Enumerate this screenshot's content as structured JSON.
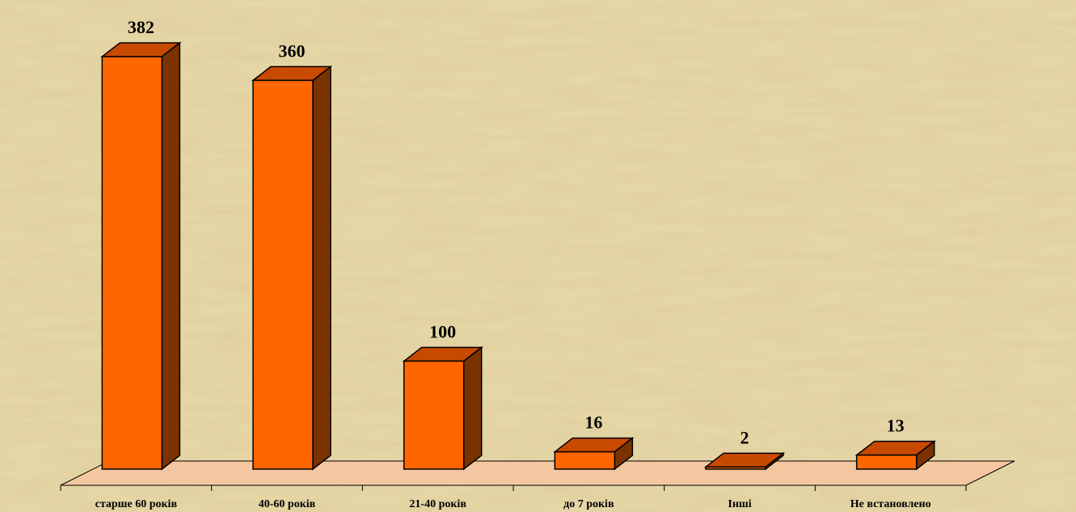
{
  "chart_data": {
    "type": "bar",
    "categories": [
      "старше 60 років",
      "40-60 років",
      "21-40 років",
      "до 7 років",
      "Інші",
      "Не встановлено"
    ],
    "values": [
      382,
      360,
      100,
      16,
      2,
      13
    ],
    "title": "",
    "xlabel": "",
    "ylabel": "",
    "ylim": [
      0,
      382
    ],
    "grid": false,
    "legend": "none",
    "colors": {
      "bar_front": "#FF6600",
      "bar_top": "#C84A00",
      "bar_side": "#7A3300",
      "floor": "#F5C7A0",
      "background": "#E8D9A8",
      "stroke": "#000000"
    }
  }
}
